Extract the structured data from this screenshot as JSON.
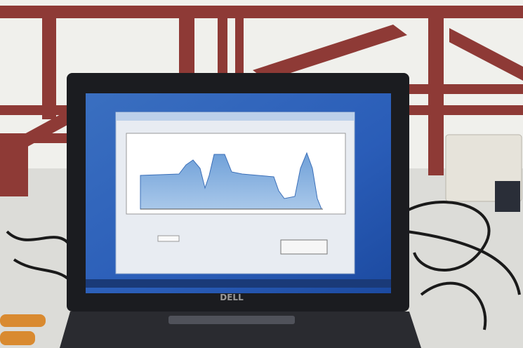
{
  "image": {
    "brand": "DELL"
  }
}
